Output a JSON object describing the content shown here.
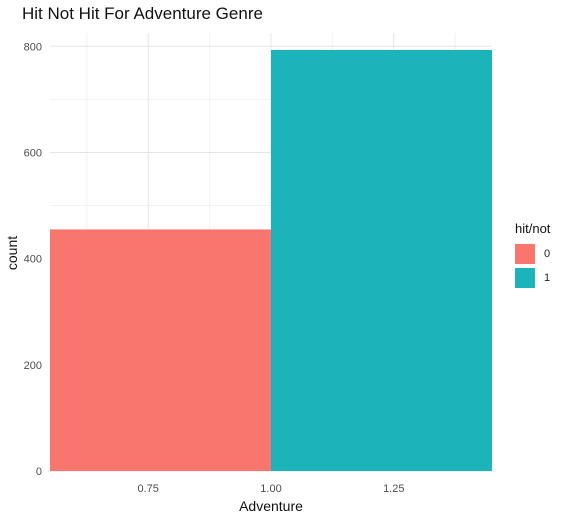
{
  "chart_data": {
    "type": "bar",
    "title": "Hit Not Hit For Adventure Genre",
    "xlabel": "Adventure",
    "ylabel": "count",
    "xlim": [
      0.55,
      1.45
    ],
    "ylim": [
      0,
      825
    ],
    "x_ticks": [
      "0.75",
      "1.00",
      "1.25"
    ],
    "x_tick_values": [
      0.75,
      1.0,
      1.25
    ],
    "y_ticks": [
      "0",
      "200",
      "400",
      "600",
      "800"
    ],
    "y_tick_values": [
      0,
      200,
      400,
      600,
      800
    ],
    "legend_title": "hit/not",
    "legend_position": "right",
    "grid": true,
    "bars": [
      {
        "label": "0",
        "x_start": 0.55,
        "x_end": 1.0,
        "value": 455,
        "color": "#F8766D"
      },
      {
        "label": "1",
        "x_start": 1.0,
        "x_end": 1.45,
        "value": 793,
        "color": "#1CB4BA"
      }
    ]
  }
}
